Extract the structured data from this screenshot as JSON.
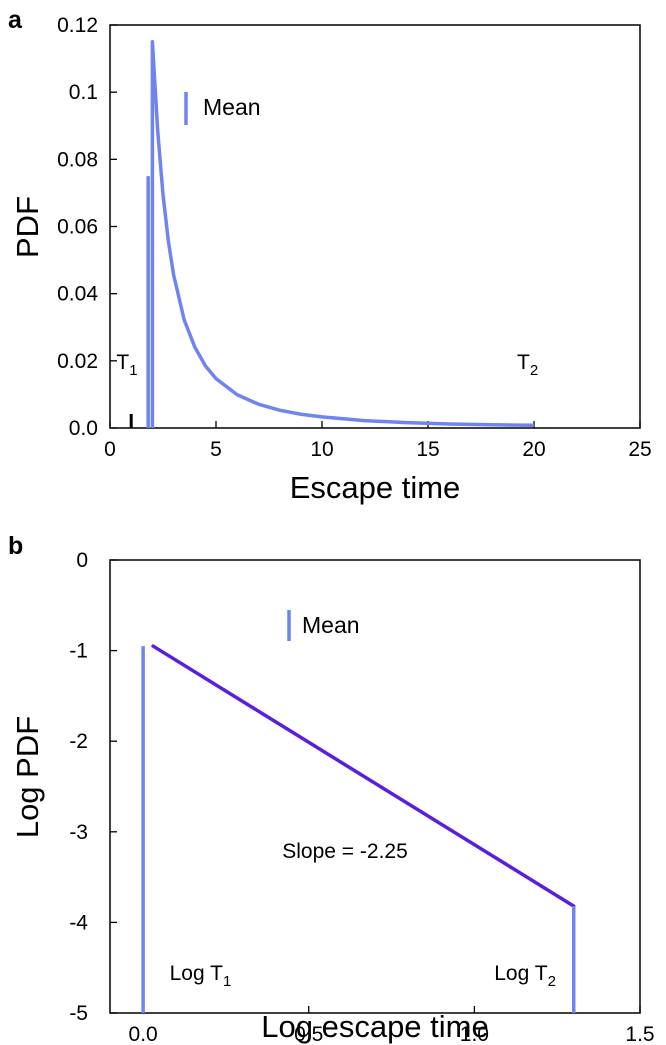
{
  "chart_data": [
    {
      "panel_label": "a",
      "type": "line",
      "xlabel": "Escape time",
      "ylabel": "PDF",
      "xlim": [
        0,
        25
      ],
      "ylim": [
        0,
        0.12
      ],
      "x_ticks": [
        0,
        5,
        10,
        15,
        20,
        25
      ],
      "x_tick_labels": [
        "0",
        "5",
        "10",
        "15",
        "20",
        "25"
      ],
      "y_ticks": [
        0,
        0.02,
        0.04,
        0.06,
        0.08,
        0.1,
        0.12
      ],
      "y_tick_labels": [
        "0.0",
        "0.02",
        "0.04",
        "0.06",
        "0.08",
        "0.1",
        "0.12"
      ],
      "legend": {
        "label": "Mean",
        "placement": "top-left"
      },
      "mean_x": 1.8,
      "colors": {
        "pdf": "#6f84ee",
        "mean": "#6f84ee",
        "marker": "#000000"
      },
      "series": [
        {
          "x": [
            2.0,
            2.25,
            2.5,
            2.75,
            3.0,
            3.5,
            4.0,
            4.5,
            5.0,
            6.0,
            7.0,
            8.0,
            9.0,
            10.0,
            12.0,
            14.0,
            16.0,
            18.0,
            20.0
          ],
          "y": [
            0.115,
            0.0885,
            0.0695,
            0.0558,
            0.0456,
            0.0322,
            0.0241,
            0.0185,
            0.0147,
            0.0099,
            0.0071,
            0.0053,
            0.0041,
            0.0033,
            0.0022,
            0.0016,
            0.0012,
            0.00095,
            0.0008
          ]
        }
      ],
      "annotations": [
        {
          "text": "T",
          "sub": "1",
          "x": 0.3,
          "y": 0.02,
          "marker_x": 1.0
        },
        {
          "text": "T",
          "sub": "2",
          "x": 19.2,
          "y": 0.02
        }
      ]
    },
    {
      "panel_label": "b",
      "type": "line",
      "xlabel": "Log escape time",
      "ylabel": "Log PDF",
      "xlim": [
        -0.1,
        1.5
      ],
      "ylim": [
        -5,
        0
      ],
      "x_ticks": [
        0.0,
        0.5,
        1.0,
        1.5
      ],
      "x_tick_labels": [
        "0.0",
        "0.5",
        "1.0",
        "1.5"
      ],
      "y_ticks": [
        0,
        -1,
        -2,
        -3,
        -4,
        -5
      ],
      "y_tick_labels": [
        "0",
        "-1",
        "-2",
        "-3",
        "-4",
        "-5"
      ],
      "legend": {
        "label": "Mean",
        "placement": "top-center"
      },
      "mean_x": 0.0,
      "colors": {
        "line": "#5a1ee0",
        "mean": "#6f84ee",
        "cutoff": "#6f84ee"
      },
      "series": [
        {
          "x": [
            0.03,
            1.3
          ],
          "y": [
            -0.95,
            -3.82
          ]
        }
      ],
      "cutoff": {
        "x": 1.3,
        "y_top": -3.82
      },
      "annotations": [
        {
          "text": "Slope = -2.25",
          "x": 0.42,
          "y": -3.2
        },
        {
          "text": "Log T",
          "sub": "1",
          "x": 0.08,
          "y": -4.55
        },
        {
          "text": "Log T",
          "sub": "2",
          "x": 1.06,
          "y": -4.55
        }
      ]
    }
  ]
}
